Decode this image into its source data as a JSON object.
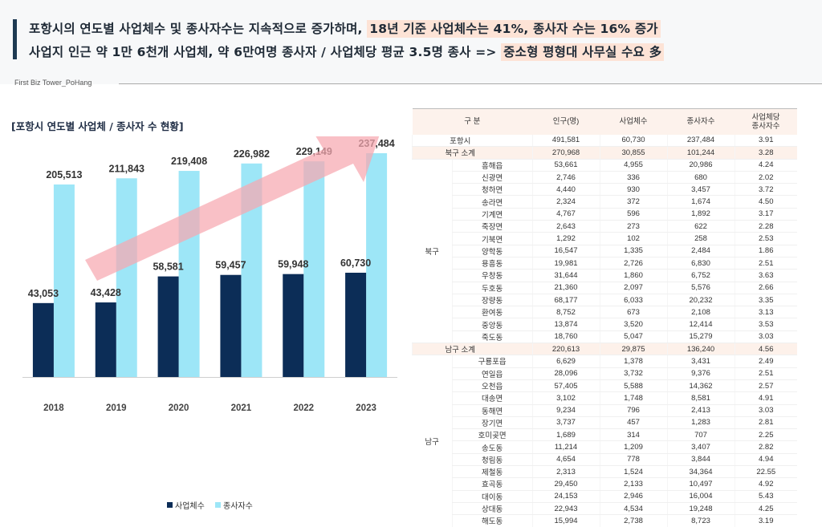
{
  "header": {
    "line1_plain": "포항시의 연도별 사업체수 및 종사자수는 지속적으로 증가하며, ",
    "line1_highlight": "18년 기준 사업체수는 41%, 종사자 수는 16% 증가",
    "line2_plain": "사업지 인근 약 1만 6천개 사업체, 약 6만여명 종사자 / 사업체당 평균 3.5명 종사 => ",
    "line2_highlight": "중소형 평형대 사무실 수요 多",
    "brand": "First Biz Tower_PoHang"
  },
  "colors": {
    "business": "#0c2d57",
    "employees": "#9de6f7",
    "arrow": "#f7a7b0",
    "highlight": "#fde3d6"
  },
  "chart_data": {
    "type": "bar",
    "title": "[포항시 연도별 사업체 / 종사자 수 현황]",
    "categories": [
      "2018",
      "2019",
      "2020",
      "2021",
      "2022",
      "2023"
    ],
    "series": [
      {
        "name": "사업체수",
        "values": [
          43053,
          43428,
          58581,
          59457,
          59948,
          60730
        ],
        "labels": [
          "43,053",
          "43,428",
          "58,581",
          "59,457",
          "59,948",
          "60,730"
        ]
      },
      {
        "name": "종사자수",
        "values": [
          205513,
          211843,
          219408,
          226982,
          229149,
          237484
        ],
        "labels": [
          "205,513",
          "211,843",
          "219,408",
          "226,982",
          "229,149",
          "237,484"
        ]
      }
    ],
    "xlabel": "",
    "ylabel": "",
    "legend": "bottom",
    "annotation": "upward trend arrow"
  },
  "table": {
    "headers": [
      "구 분",
      "인구(명)",
      "사업체수",
      "종사자수",
      "사업체당\n종사자수"
    ],
    "total": {
      "name": "포항시",
      "values": [
        "491,581",
        "60,730",
        "237,484",
        "3.91"
      ]
    },
    "groups": [
      {
        "gu": "북구",
        "subtotal": {
          "name": "북구 소계",
          "values": [
            "270,968",
            "30,855",
            "101,244",
            "3.28"
          ]
        },
        "rows": [
          {
            "name": "흥해읍",
            "values": [
              "53,661",
              "4,955",
              "20,986",
              "4.24"
            ]
          },
          {
            "name": "신광면",
            "values": [
              "2,746",
              "336",
              "680",
              "2.02"
            ]
          },
          {
            "name": "청하면",
            "values": [
              "4,440",
              "930",
              "3,457",
              "3.72"
            ]
          },
          {
            "name": "송라면",
            "values": [
              "2,324",
              "372",
              "1,674",
              "4.50"
            ]
          },
          {
            "name": "기계면",
            "values": [
              "4,767",
              "596",
              "1,892",
              "3.17"
            ]
          },
          {
            "name": "죽장면",
            "values": [
              "2,643",
              "273",
              "622",
              "2.28"
            ]
          },
          {
            "name": "기북면",
            "values": [
              "1,292",
              "102",
              "258",
              "2.53"
            ]
          },
          {
            "name": "양학동",
            "values": [
              "16,547",
              "1,335",
              "2,484",
              "1.86"
            ]
          },
          {
            "name": "용흥동",
            "values": [
              "19,981",
              "2,726",
              "6,830",
              "2.51"
            ]
          },
          {
            "name": "우창동",
            "values": [
              "31,644",
              "1,860",
              "6,752",
              "3.63"
            ]
          },
          {
            "name": "두호동",
            "values": [
              "21,360",
              "2,097",
              "5,576",
              "2.66"
            ]
          },
          {
            "name": "장량동",
            "values": [
              "68,177",
              "6,033",
              "20,232",
              "3.35"
            ]
          },
          {
            "name": "환여동",
            "values": [
              "8,752",
              "673",
              "2,108",
              "3.13"
            ]
          },
          {
            "name": "중앙동",
            "values": [
              "13,874",
              "3,520",
              "12,414",
              "3.53"
            ]
          },
          {
            "name": "죽도동",
            "values": [
              "18,760",
              "5,047",
              "15,279",
              "3.03"
            ]
          }
        ]
      },
      {
        "gu": "남구",
        "subtotal": {
          "name": "남구 소계",
          "values": [
            "220,613",
            "29,875",
            "136,240",
            "4.56"
          ]
        },
        "rows": [
          {
            "name": "구룡포읍",
            "values": [
              "6,629",
              "1,378",
              "3,431",
              "2.49"
            ]
          },
          {
            "name": "연일읍",
            "values": [
              "28,096",
              "3,732",
              "9,376",
              "2.51"
            ]
          },
          {
            "name": "오천읍",
            "values": [
              "57,405",
              "5,588",
              "14,362",
              "2.57"
            ]
          },
          {
            "name": "대송면",
            "values": [
              "3,102",
              "1,748",
              "8,581",
              "4.91"
            ]
          },
          {
            "name": "동해면",
            "values": [
              "9,234",
              "796",
              "2,413",
              "3.03"
            ]
          },
          {
            "name": "장기면",
            "values": [
              "3,737",
              "457",
              "1,283",
              "2.81"
            ]
          },
          {
            "name": "호미곶면",
            "values": [
              "1,689",
              "314",
              "707",
              "2.25"
            ]
          },
          {
            "name": "송도동",
            "values": [
              "11,214",
              "1,209",
              "3,407",
              "2.82"
            ]
          },
          {
            "name": "청림동",
            "values": [
              "4,654",
              "778",
              "3,844",
              "4.94"
            ]
          },
          {
            "name": "제철동",
            "values": [
              "2,313",
              "1,524",
              "34,364",
              "22.55"
            ]
          },
          {
            "name": "효곡동",
            "values": [
              "29,450",
              "2,133",
              "10,497",
              "4.92"
            ]
          },
          {
            "name": "대이동",
            "values": [
              "24,153",
              "2,946",
              "16,004",
              "5.43"
            ]
          },
          {
            "name": "상대동",
            "values": [
              "22,943",
              "4,534",
              "19,248",
              "4.25"
            ]
          },
          {
            "name": "해도동",
            "values": [
              "15,994",
              "2,738",
              "8,723",
              "3.19"
            ]
          }
        ]
      }
    ]
  }
}
